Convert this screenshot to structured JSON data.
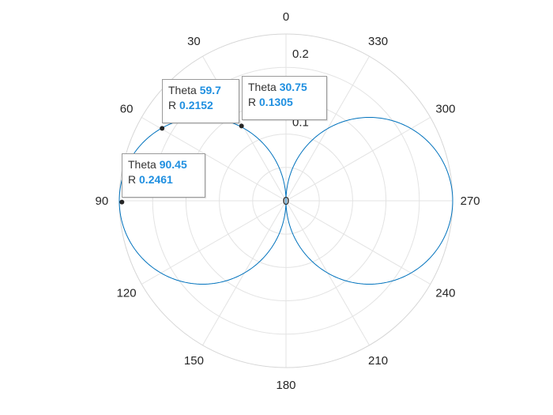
{
  "chart_data": {
    "type": "line",
    "coordinate_system": "polar",
    "theta_zero_location": "top",
    "theta_direction": "counterclockwise",
    "theta_ticks": [
      0,
      30,
      60,
      90,
      120,
      150,
      180,
      210,
      240,
      270,
      300,
      330
    ],
    "r_ticks": [
      0,
      0.1,
      0.2
    ],
    "r_tick_labels": [
      "0",
      "0.1",
      "0.2"
    ],
    "rlim": [
      0,
      0.25
    ],
    "grid": true,
    "series": [
      {
        "function": "r = 0.25*|sin(theta)|",
        "theta_range": [
          0,
          360
        ],
        "color": "#0072bd"
      }
    ],
    "datatips": [
      {
        "theta_label": "Theta",
        "theta": "30.75",
        "r_label": "R",
        "r": "0.1305"
      },
      {
        "theta_label": "Theta",
        "theta": "59.7",
        "r_label": "R",
        "r": "0.2152"
      },
      {
        "theta_label": "Theta",
        "theta": "90.45",
        "r_label": "R",
        "r": "0.2461"
      }
    ],
    "colors": {
      "grid": "#e3e3e3",
      "label": "#262626",
      "value": "#1f8fe0",
      "marker": "#262626"
    }
  }
}
